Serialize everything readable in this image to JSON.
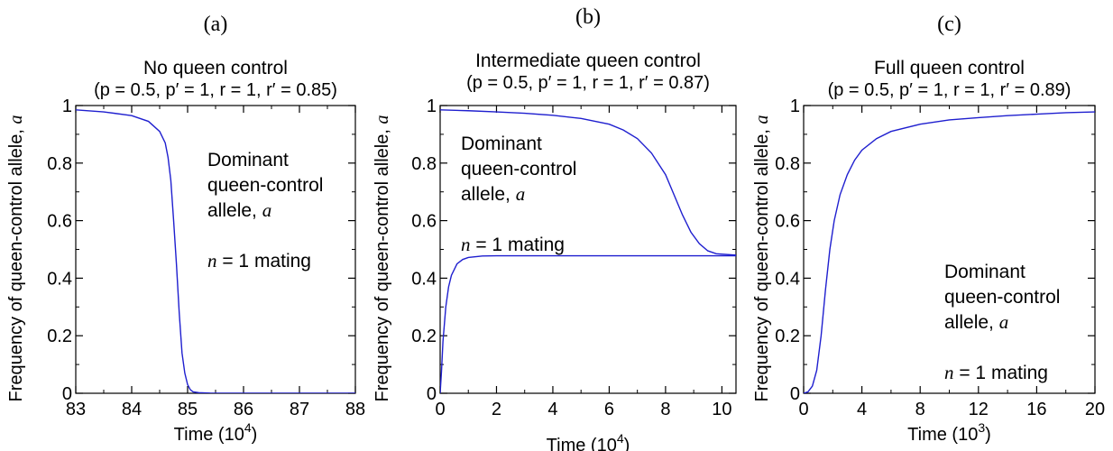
{
  "colors": {
    "line": "#1f1fcf",
    "axis": "#000000",
    "background": "#ffffff"
  },
  "chart_data": [
    {
      "type": "line",
      "panel": "(a)",
      "title": "No queen control",
      "params": "(p = 0.5, p′ = 1, r = 1, r′ = 0.85)",
      "xlabel": "Time (10",
      "xlabel_exp": "4",
      "ylabel": "Frequency of queen-control allele, ",
      "ylabel_var": "a",
      "xlim": [
        83,
        88
      ],
      "ylim": [
        0,
        1
      ],
      "xticks": [
        83,
        84,
        85,
        86,
        87,
        88
      ],
      "yticks": [
        0,
        0.2,
        0.4,
        0.6,
        0.8,
        1
      ],
      "ytick_labels": [
        "0",
        "0.2",
        "0.4",
        "0.6",
        "0.8",
        "1"
      ],
      "annotation": [
        "Dominant",
        "queen-control",
        "allele, a",
        "",
        "n = 1 mating"
      ],
      "series": [
        {
          "x": [
            83,
            83.5,
            84,
            84.3,
            84.5,
            84.6,
            84.65,
            84.7,
            84.75,
            84.8,
            84.85,
            84.9,
            84.95,
            85,
            85.05,
            85.1,
            85.2,
            85.4,
            86,
            88
          ],
          "y": [
            0.985,
            0.978,
            0.965,
            0.945,
            0.91,
            0.87,
            0.82,
            0.74,
            0.6,
            0.45,
            0.28,
            0.14,
            0.07,
            0.03,
            0.012,
            0.005,
            0.002,
            0.0005,
            0,
            0
          ]
        }
      ]
    },
    {
      "type": "line",
      "panel": "(b)",
      "title": "Intermediate queen control",
      "params": "(p = 0.5, p′ = 1, r = 1, r′ = 0.87)",
      "xlabel": "Time (10",
      "xlabel_exp": "4",
      "ylabel": "Frequency of queen-control allele, ",
      "ylabel_var": "a",
      "xlim": [
        0,
        10.5
      ],
      "ylim": [
        0,
        1
      ],
      "xticks": [
        0,
        2,
        4,
        6,
        8,
        10
      ],
      "yticks": [
        0,
        0.2,
        0.4,
        0.6,
        0.8,
        1
      ],
      "ytick_labels": [
        "0",
        "0.2",
        "0.4",
        "0.6",
        "0.8",
        "1"
      ],
      "annotation": [
        "Dominant",
        "queen-control",
        "allele, a",
        "",
        "n = 1 mating"
      ],
      "series": [
        {
          "x": [
            0,
            1,
            2,
            3,
            4,
            5,
            6,
            6.5,
            7,
            7.5,
            8,
            8.3,
            8.6,
            8.9,
            9.2,
            9.5,
            9.8,
            10.5
          ],
          "y": [
            0.985,
            0.982,
            0.978,
            0.973,
            0.966,
            0.955,
            0.935,
            0.915,
            0.885,
            0.835,
            0.76,
            0.69,
            0.62,
            0.56,
            0.52,
            0.495,
            0.485,
            0.48
          ]
        },
        {
          "x": [
            0,
            0.05,
            0.1,
            0.2,
            0.3,
            0.4,
            0.6,
            0.8,
            1,
            1.5,
            2,
            3,
            10.5
          ],
          "y": [
            0,
            0.08,
            0.18,
            0.3,
            0.37,
            0.41,
            0.45,
            0.465,
            0.472,
            0.477,
            0.478,
            0.478,
            0.478
          ]
        }
      ]
    },
    {
      "type": "line",
      "panel": "(c)",
      "title": "Full queen control",
      "params": "(p = 0.5, p′ = 1, r = 1, r′ = 0.89)",
      "xlabel": "Time (10",
      "xlabel_exp": "3",
      "ylabel": "Frequency of queen-control allele, ",
      "ylabel_var": "a",
      "xlim": [
        0,
        20
      ],
      "ylim": [
        0,
        1
      ],
      "xticks": [
        0,
        4,
        8,
        12,
        16,
        20
      ],
      "yticks": [
        0,
        0.2,
        0.4,
        0.6,
        0.8,
        1
      ],
      "ytick_labels": [
        "0",
        "0.2",
        "0.4",
        "0.6",
        "0.8",
        "1"
      ],
      "annotation": [
        "Dominant",
        "queen-control",
        "allele, a",
        "",
        "n = 1 mating"
      ],
      "series": [
        {
          "x": [
            0,
            0.3,
            0.6,
            0.9,
            1.2,
            1.5,
            1.8,
            2.1,
            2.5,
            3,
            3.5,
            4,
            5,
            6,
            8,
            10,
            12,
            14,
            16,
            18,
            20
          ],
          "y": [
            0,
            0.005,
            0.025,
            0.08,
            0.2,
            0.36,
            0.5,
            0.6,
            0.69,
            0.76,
            0.81,
            0.845,
            0.885,
            0.91,
            0.935,
            0.95,
            0.958,
            0.965,
            0.97,
            0.975,
            0.978
          ]
        }
      ]
    }
  ]
}
